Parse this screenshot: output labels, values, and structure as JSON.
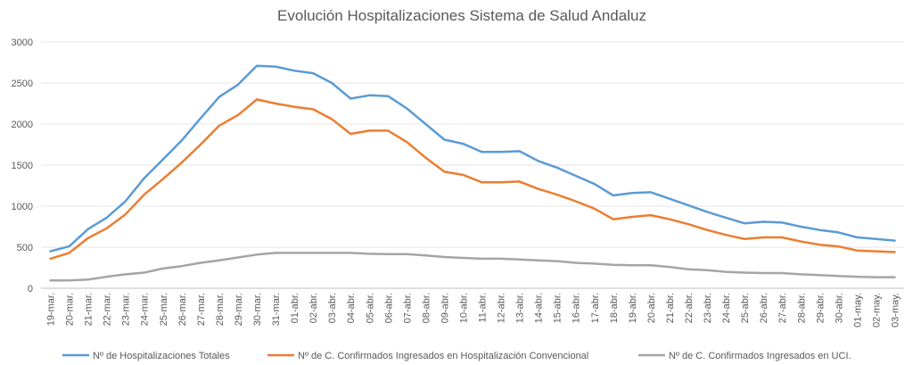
{
  "chart_data": {
    "type": "line",
    "title": "Evolución Hospitalizaciones Sistema de Salud Andaluz",
    "xlabel": "",
    "ylabel": "",
    "ylim": [
      0,
      3000
    ],
    "yticks": [
      0,
      500,
      1000,
      1500,
      2000,
      2500,
      3000
    ],
    "grid": true,
    "legend_position": "bottom",
    "categories": [
      "19-mar.",
      "20-mar.",
      "21-mar.",
      "22-mar.",
      "23-mar.",
      "24-mar.",
      "25-mar.",
      "26-mar.",
      "27-mar.",
      "28-mar.",
      "29-mar.",
      "30-mar.",
      "31-mar.",
      "01-abr.",
      "02-abr.",
      "03-abr.",
      "04-abr.",
      "05-abr.",
      "06-abr.",
      "07-abr.",
      "08-abr.",
      "09-abr.",
      "10-abr.",
      "11-abr.",
      "12-abr.",
      "13-abr.",
      "14-abr.",
      "15-abr.",
      "16-abr.",
      "17-abr.",
      "18-abr.",
      "19-abr.",
      "20-abr.",
      "21-abr.",
      "22-abr.",
      "23-abr.",
      "24-abr.",
      "25-abr.",
      "26-abr.",
      "27-abr.",
      "28-abr.",
      "29-abr.",
      "30-abr.",
      "01-may.",
      "02-may.",
      "03-may."
    ],
    "series": [
      {
        "name": "Nº de Hospitalizaciones Totales",
        "color": "#5b9bd5",
        "values": [
          450,
          510,
          720,
          860,
          1060,
          1340,
          1570,
          1800,
          2070,
          2330,
          2480,
          2710,
          2700,
          2650,
          2620,
          2500,
          2310,
          2350,
          2340,
          2190,
          2000,
          1810,
          1760,
          1660,
          1660,
          1670,
          1550,
          1470,
          1370,
          1270,
          1130,
          1160,
          1170,
          1090,
          1010,
          930,
          860,
          790,
          810,
          800,
          750,
          710,
          680,
          620,
          600,
          580
        ]
      },
      {
        "name": "Nº de C. Confirmados Ingresados en Hospitalización Convencional",
        "color": "#ed7d31",
        "values": [
          360,
          430,
          610,
          730,
          900,
          1140,
          1330,
          1530,
          1750,
          1980,
          2110,
          2300,
          2250,
          2210,
          2180,
          2060,
          1880,
          1920,
          1920,
          1780,
          1590,
          1420,
          1380,
          1290,
          1290,
          1300,
          1210,
          1140,
          1060,
          970,
          840,
          870,
          890,
          840,
          780,
          710,
          650,
          600,
          620,
          620,
          570,
          530,
          510,
          460,
          450,
          440
        ]
      },
      {
        "name": "Nº de C. Confirmados Ingresados en UCI.",
        "color": "#a5a5a5",
        "values": [
          95,
          95,
          105,
          140,
          170,
          190,
          240,
          270,
          310,
          340,
          375,
          410,
          430,
          430,
          430,
          430,
          430,
          420,
          415,
          415,
          400,
          380,
          370,
          360,
          360,
          350,
          340,
          330,
          310,
          300,
          285,
          280,
          280,
          260,
          230,
          220,
          200,
          190,
          185,
          185,
          170,
          160,
          150,
          140,
          135,
          135
        ]
      }
    ]
  }
}
